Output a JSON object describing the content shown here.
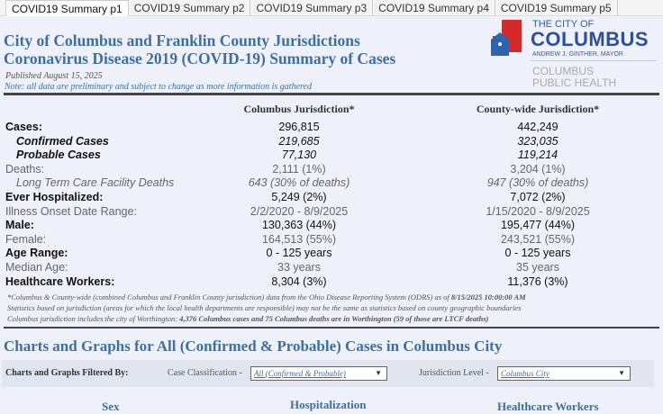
{
  "tabs": [
    "COVID19 Summary p1",
    "COVID19 Summary p2",
    "COVID19 Summary p3",
    "COVID19 Summary p4",
    "COVID19 Summary p5"
  ],
  "header": {
    "title_line1": "City of Columbus and Franklin County Jurisdictions",
    "title_line2": "Coronavirus Disease 2019 (COVID-19) Summary of Cases",
    "published": "Published August 15, 2025",
    "note": "Note: all data are preliminary and subject to change as more information is gathered"
  },
  "logo": {
    "line1": "THE CITY OF",
    "line2": "COLUMBUS",
    "line3": "ANDREW J. GINTHER, MAYOR",
    "line4": "COLUMBUS",
    "line5": "PUBLIC HEALTH"
  },
  "table": {
    "col1": "Columbus Jurisdiction*",
    "col2": "County-wide Jurisdiction*",
    "rows": [
      {
        "label": "Cases:",
        "c": "296,815",
        "w": "442,249"
      },
      {
        "label": "Confirmed Cases",
        "c": "219,685",
        "w": "323,035"
      },
      {
        "label": "Probable Cases",
        "c": "77,130",
        "w": "119,214"
      },
      {
        "label": "Deaths:",
        "c": "2,111 (1%)",
        "w": "3,204 (1%)"
      },
      {
        "label": "Long Term Care Facility Deaths",
        "c": "643 (30% of deaths)",
        "w": "947 (30% of deaths)"
      },
      {
        "label": "Ever Hospitalized:",
        "c": "5,249 (2%)",
        "w": "7,072 (2%)"
      },
      {
        "label": "Illness Onset Date Range:",
        "c": "2/2/2020 - 8/9/2025",
        "w": "1/15/2020 - 8/9/2025"
      },
      {
        "label": "Male:",
        "c": "130,363 (44%)",
        "w": "195,477 (44%)"
      },
      {
        "label": "Female:",
        "c": "164,513 (55%)",
        "w": "243,521 (55%)"
      },
      {
        "label": "Age Range:",
        "c": "0 - 125 years",
        "w": "0 - 125 years"
      },
      {
        "label": "Median Age:",
        "c": "33 years",
        "w": "35 years"
      },
      {
        "label": "Healthcare Workers:",
        "c": "8,304 (3%)",
        "w": "11,376 (3%)"
      }
    ]
  },
  "footnote": {
    "l1": "*Columbus & County-wide (combined Columbus and Franklin County jurisdiction) data from the Ohio Disease Reporting System (ODRS) as of ",
    "l1b": "8/15/2025 10:00:00 AM",
    "l2": "Statistics based on jurisdiction (areas for which the local health departments are responsible) may not be the same as statistics based on county geographic boundaries",
    "l3": "Columbus jurisdiction includes the city of Worthington: ",
    "l3b": "4,376 Columbus cases and 75 Columbus deaths are in Worthington (59 of those are LTCF deaths)"
  },
  "charts": {
    "title": "Charts and Graphs for All (Confirmed & Probable) Cases in Columbus City",
    "filtered_by": "Charts and Graphs Filtered By:",
    "case_label": "Case Classification -",
    "case_value": "All (Confirmed & Probable)",
    "jur_label": "Jurisdiction Level -",
    "jur_value": "Columbus City",
    "sub1": "Sex",
    "sub2": "Hospitalization",
    "sub3": "Healthcare Workers"
  }
}
